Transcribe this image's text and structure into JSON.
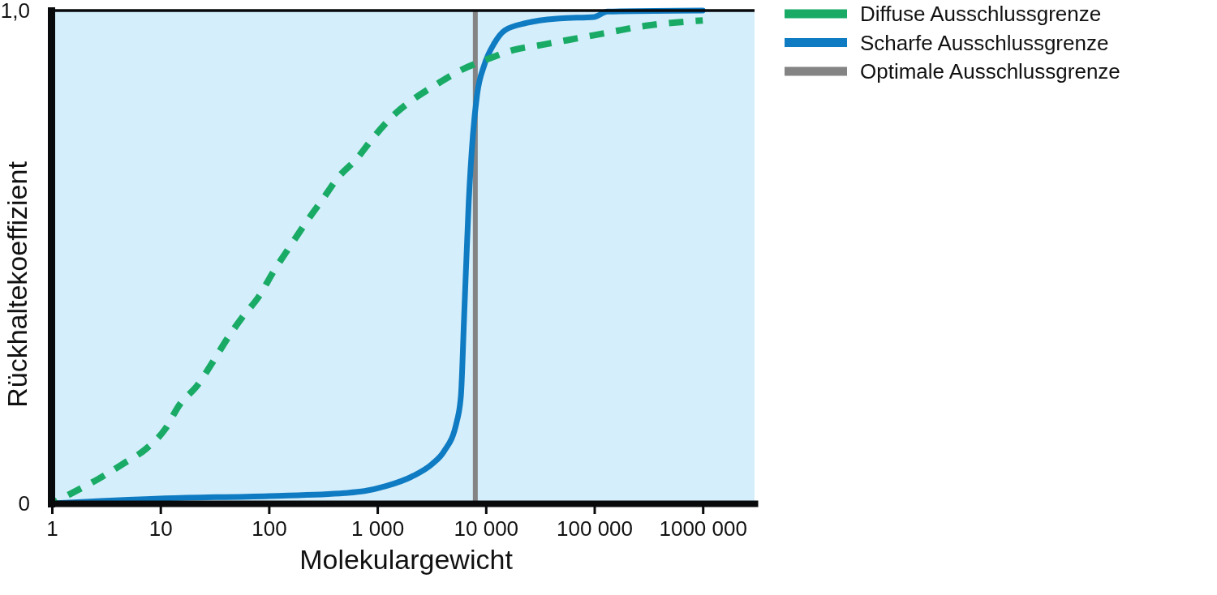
{
  "chart_data": {
    "type": "line",
    "xlabel": "Molekulargewicht",
    "ylabel": "Rückhaltekoeffizient",
    "log": "x",
    "xlim": [
      1,
      3000000
    ],
    "xticks": [
      1,
      10,
      100,
      {
        "value": 1000,
        "label": "1 000"
      },
      {
        "value": 10000,
        "label": "10 000"
      },
      {
        "value": 100000,
        "label": "100 000"
      },
      {
        "value": 1000000,
        "label": "1000 000"
      }
    ],
    "ylim": [
      0,
      1
    ],
    "yticks": [
      0,
      {
        "value": 1,
        "label": "1,0"
      }
    ],
    "legend": "top right",
    "series": [
      {
        "name": "Diffuse Ausschlussgrenze",
        "color": "#19ab66",
        "line_style": "dashed",
        "x": [
          1,
          1.5,
          2.7,
          4.5,
          7.3,
          11,
          15,
          22,
          31,
          43,
          58,
          81,
          110,
          155,
          220,
          320,
          430,
          650,
          900,
          1450,
          2150,
          3500,
          6000,
          10000,
          18000,
          32000,
          100000,
          320000,
          1000000
        ],
        "values": [
          0,
          0.02,
          0.05,
          0.08,
          0.11,
          0.15,
          0.2,
          0.24,
          0.29,
          0.34,
          0.38,
          0.42,
          0.47,
          0.52,
          0.57,
          0.62,
          0.66,
          0.7,
          0.74,
          0.79,
          0.82,
          0.85,
          0.88,
          0.9,
          0.92,
          0.93,
          0.95,
          0.97,
          0.98
        ]
      },
      {
        "name": "Scharfe Ausschlussgrenze",
        "color": "#0f7bc2",
        "line_style": "solid",
        "x": [
          1,
          10,
          100,
          500,
          760,
          1200,
          2150,
          3200,
          4100,
          5400,
          5900,
          6300,
          6950,
          7600,
          8300,
          9700,
          12000,
          15000,
          24000,
          48000,
          100000,
          132000,
          1000000
        ],
        "values": [
          0,
          0.01,
          0.015,
          0.021,
          0.025,
          0.035,
          0.056,
          0.08,
          0.105,
          0.166,
          0.22,
          0.375,
          0.61,
          0.747,
          0.829,
          0.89,
          0.934,
          0.96,
          0.975,
          0.984,
          0.987,
          0.998,
          1
        ]
      },
      {
        "name": "Optimale Ausschlussgrenze",
        "color": "#848484",
        "line_style": "solid",
        "x": [
          8000,
          8000
        ],
        "values": [
          0,
          1
        ]
      }
    ]
  }
}
